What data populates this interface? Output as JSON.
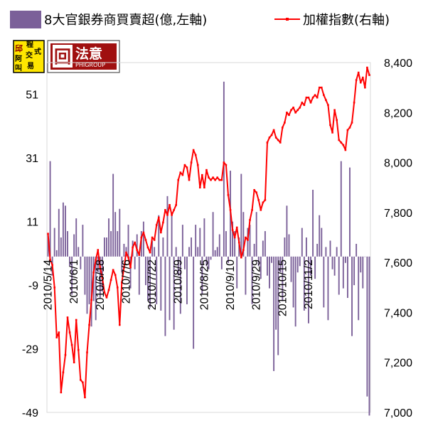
{
  "chart_data": {
    "type": "bar",
    "title": "",
    "series": [
      {
        "name": "8大官銀券商買賣超(億,左軸)",
        "kind": "bar",
        "axis": "left",
        "color": "#7b6099",
        "values": [
          7,
          30,
          -6,
          9,
          2,
          15,
          6,
          17,
          16,
          8,
          -3,
          -12,
          7,
          12,
          3,
          -4,
          10,
          -12,
          -18,
          -15,
          -22,
          -14,
          -20,
          -5,
          -13,
          -11,
          6,
          6,
          12,
          8,
          26,
          14,
          8,
          15,
          -5,
          4,
          3,
          10,
          -10,
          5,
          -4,
          7,
          -12,
          8,
          11,
          -9,
          -14,
          -16,
          5,
          3,
          -15,
          13,
          -17,
          6,
          -25,
          19,
          -20,
          13,
          -23,
          3,
          -6,
          -18,
          10,
          -4,
          -15,
          3,
          6,
          -29,
          10,
          3,
          9,
          -12,
          12,
          -3,
          -4,
          -1,
          14,
          2,
          3,
          7,
          -4,
          55,
          8,
          -2,
          27,
          11,
          8,
          -10,
          6,
          26,
          14,
          -12,
          9,
          10,
          -15,
          4,
          14,
          -3,
          -7,
          5,
          8,
          -6,
          -10,
          -2,
          -36,
          -23,
          -31,
          -5,
          -14,
          6,
          16,
          7,
          -8,
          -16,
          -22,
          -5,
          -3,
          9,
          -17,
          6,
          -21,
          -6,
          21,
          -7,
          4,
          13,
          9,
          -16,
          3,
          -20,
          5,
          -4,
          -6,
          3,
          -12,
          30,
          -10,
          -2,
          -13,
          28,
          -25,
          -9,
          4,
          -20,
          -5,
          -10,
          0,
          -44,
          -50
        ]
      },
      {
        "name": "加權指數(右軸)",
        "kind": "line",
        "axis": "right",
        "color": "#ff0000",
        "values": [
          7715,
          7610,
          7590,
          7500,
          7300,
          7320,
          7080,
          7160,
          7230,
          7380,
          7320,
          7270,
          7200,
          7370,
          7250,
          7130,
          7120,
          7060,
          7240,
          7350,
          7450,
          7560,
          7610,
          7650,
          7580,
          7540,
          7480,
          7460,
          7490,
          7530,
          7570,
          7550,
          7500,
          7350,
          7520,
          7580,
          7640,
          7620,
          7580,
          7660,
          7680,
          7650,
          7630,
          7700,
          7720,
          7690,
          7660,
          7640,
          7700,
          7690,
          7750,
          7780,
          7720,
          7760,
          7810,
          7790,
          7830,
          7790,
          7810,
          7830,
          7930,
          7960,
          7950,
          7990,
          7980,
          7930,
          8000,
          8050,
          8030,
          7990,
          7900,
          7950,
          7900,
          7970,
          7940,
          7930,
          7940,
          7930,
          7940,
          7930,
          7930,
          8000,
          7990,
          7870,
          7810,
          7730,
          7700,
          7740,
          7680,
          7620,
          7650,
          7700,
          7690,
          7770,
          7810,
          7890,
          7880,
          7850,
          7810,
          7840,
          7850,
          8080,
          8100,
          8110,
          8130,
          8100,
          8090,
          8080,
          8140,
          8160,
          8200,
          8190,
          8210,
          8220,
          8200,
          8210,
          8220,
          8240,
          8230,
          8260,
          8260,
          8240,
          8260,
          8270,
          8260,
          8300,
          8300,
          8270,
          8250,
          8230,
          8150,
          8120,
          8210,
          8170,
          8090,
          8080,
          8070,
          8050,
          8130,
          8140,
          8160,
          8240,
          8330,
          8360,
          8320,
          8340,
          8300,
          8380,
          8350
        ]
      }
    ],
    "y_left": {
      "ylim": [
        -49,
        61
      ],
      "ticks": [
        "-49",
        "-29",
        "-9",
        "11",
        "31",
        "51"
      ]
    },
    "y_right": {
      "ylim": [
        7000,
        8400
      ],
      "ticks": [
        "7,000",
        "7,200",
        "7,400",
        "7,600",
        "7,800",
        "8,000",
        "8,200",
        "8,400"
      ]
    },
    "x_tick_labels": [
      "2010/5/14",
      "2010/6/1",
      "2010/6/18",
      "2010/7/6",
      "2010/7/22",
      "2010/8/9",
      "2010/8/25",
      "2010/9/10",
      "2010/9/29",
      "2010/10/15",
      "2010/11/2"
    ],
    "x_tick_indices": [
      0,
      12,
      24,
      36,
      48,
      60,
      72,
      84,
      96,
      108,
      120
    ],
    "legend_position": "top",
    "grid": false
  },
  "logos": {
    "left_logo_chars": [
      "邱",
      "程",
      "式",
      "阿",
      "交",
      "叫",
      "易"
    ],
    "right_logo_mark": "回",
    "right_logo_name": "法意",
    "right_logo_sub": "PHIGROUP"
  }
}
